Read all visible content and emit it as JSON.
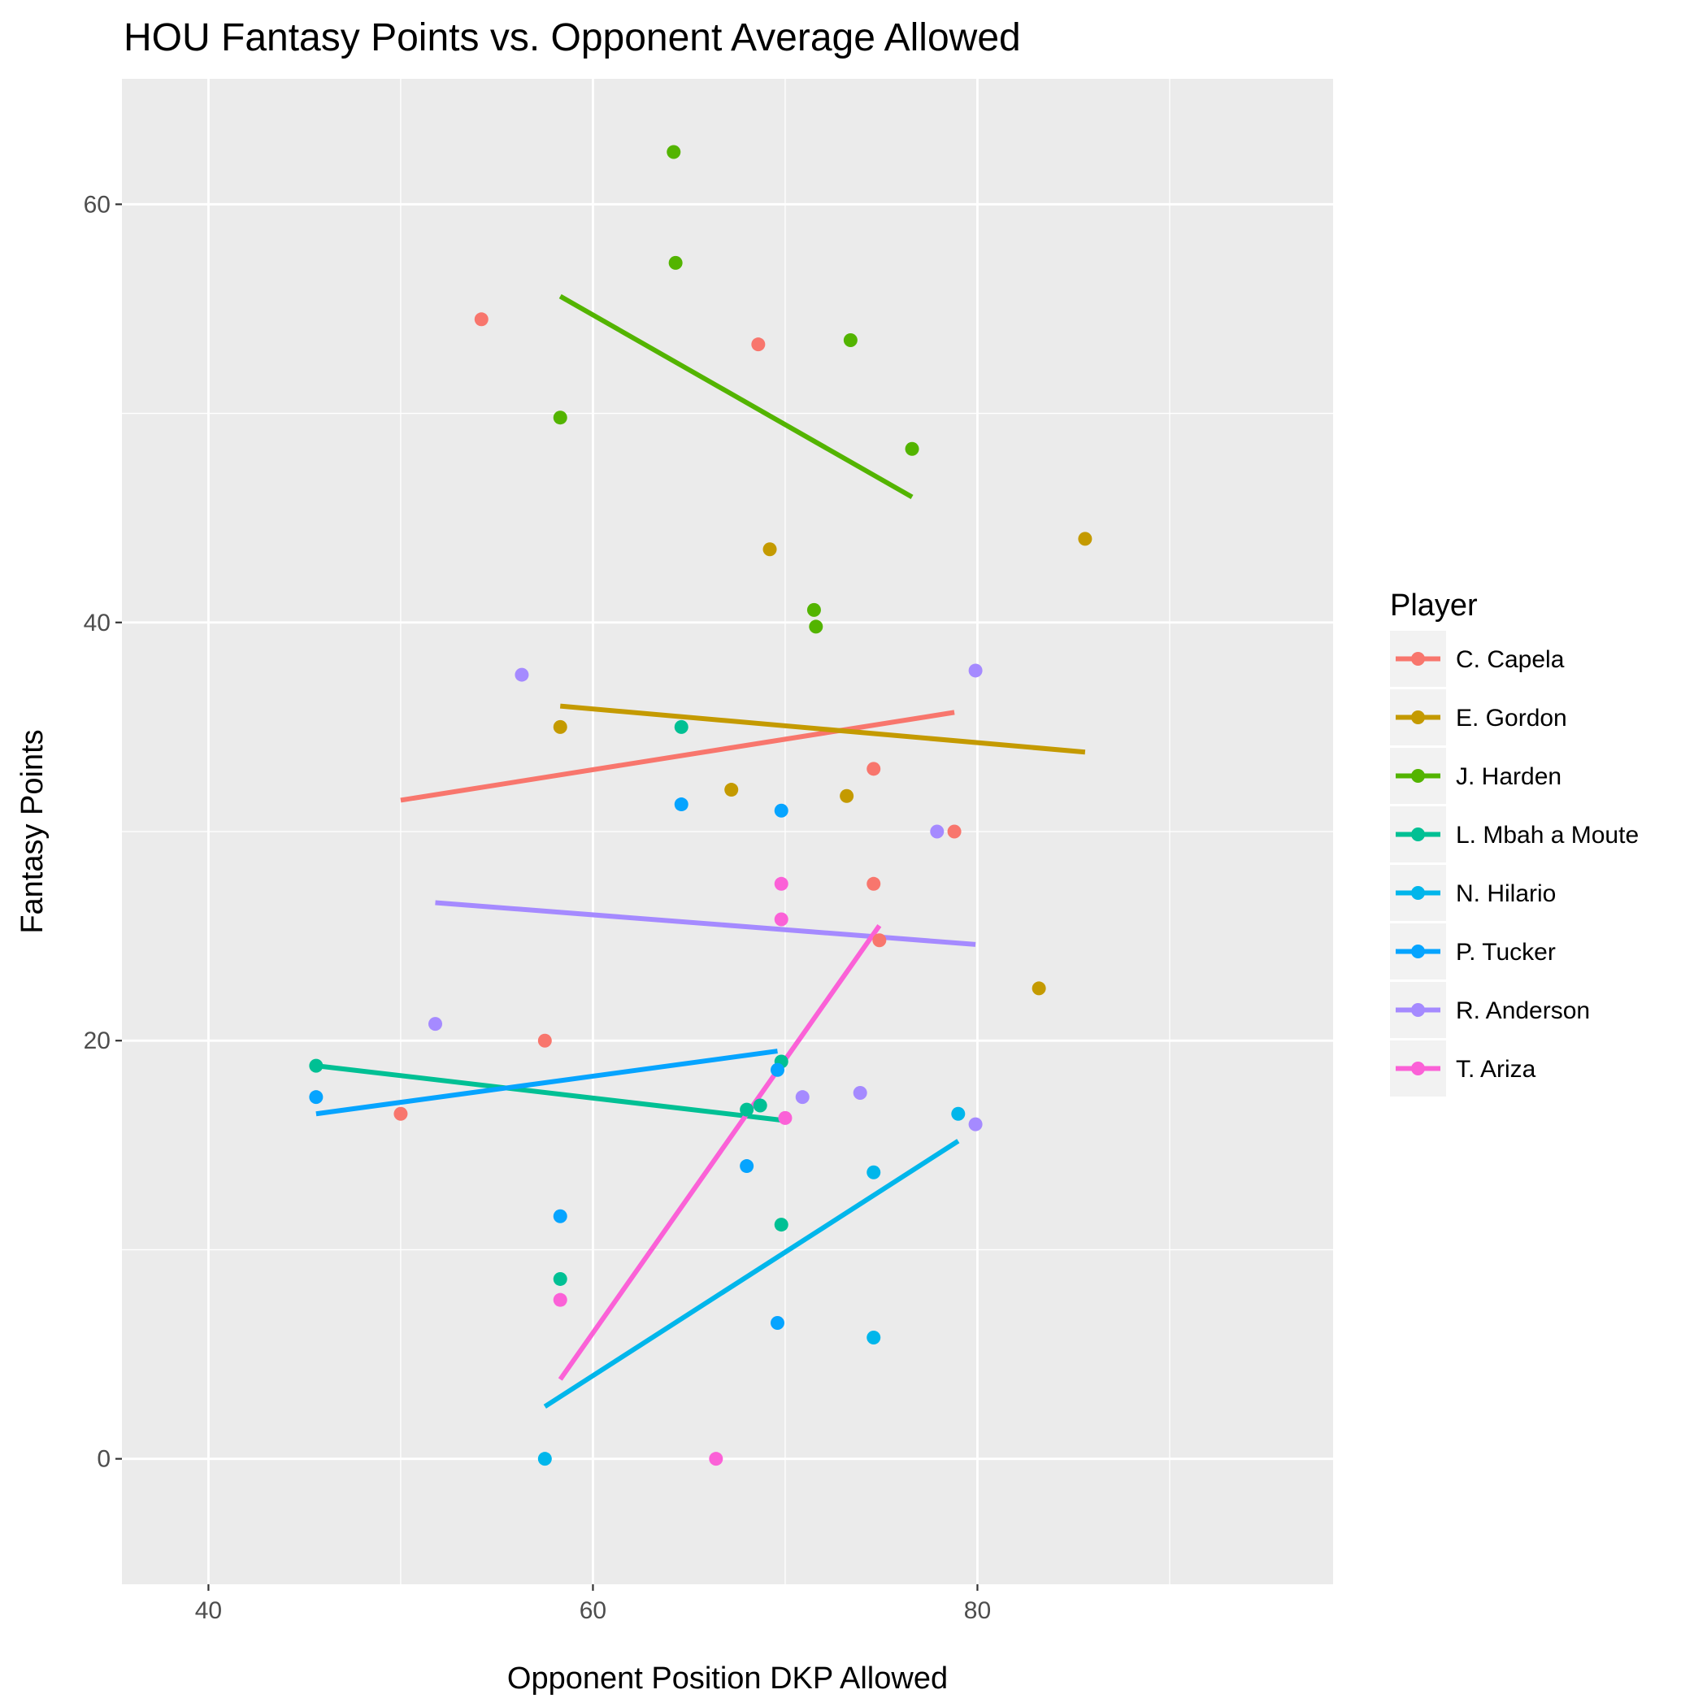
{
  "chart_data": {
    "type": "scatter",
    "title": "HOU Fantasy Points vs. Opponent Average Allowed",
    "xlabel": "Opponent Position DKP Allowed",
    "ylabel": "Fantasy Points",
    "xlim": [
      35.5,
      98.5
    ],
    "ylim": [
      -6,
      66
    ],
    "x_ticks": [
      40,
      60,
      80
    ],
    "y_ticks": [
      0,
      20,
      40,
      60
    ],
    "x_minor": [
      50,
      70,
      90
    ],
    "y_minor": [
      10,
      30,
      50
    ],
    "grid": true,
    "legend_title": "Player",
    "legend_position": "right",
    "series": [
      {
        "name": "C. Capela",
        "color": "#F8766D",
        "points": [
          [
            54.2,
            54.5
          ],
          [
            68.6,
            53.3
          ],
          [
            50.0,
            16.5
          ],
          [
            57.5,
            20.0
          ],
          [
            74.6,
            33.0
          ],
          [
            78.8,
            30.0
          ],
          [
            74.6,
            27.5
          ],
          [
            74.9,
            24.8
          ]
        ],
        "trend": [
          [
            50.0,
            31.5
          ],
          [
            78.8,
            35.7
          ]
        ]
      },
      {
        "name": "E. Gordon",
        "color": "#C49A00",
        "points": [
          [
            58.3,
            35.0
          ],
          [
            69.2,
            43.5
          ],
          [
            67.2,
            32.0
          ],
          [
            73.2,
            31.7
          ],
          [
            85.6,
            44.0
          ],
          [
            83.2,
            22.5
          ]
        ],
        "trend": [
          [
            58.3,
            36.0
          ],
          [
            85.6,
            33.8
          ]
        ]
      },
      {
        "name": "J. Harden",
        "color": "#53B400",
        "points": [
          [
            64.2,
            62.5
          ],
          [
            64.3,
            57.2
          ],
          [
            73.4,
            53.5
          ],
          [
            58.3,
            49.8
          ],
          [
            76.6,
            48.3
          ],
          [
            71.5,
            40.6
          ],
          [
            71.6,
            39.8
          ]
        ],
        "trend": [
          [
            58.3,
            55.6
          ],
          [
            76.6,
            46.0
          ]
        ]
      },
      {
        "name": "L. Mbah a Moute",
        "color": "#00C094",
        "points": [
          [
            45.6,
            18.8
          ],
          [
            64.6,
            35.0
          ],
          [
            69.8,
            19.0
          ],
          [
            68.0,
            16.7
          ],
          [
            68.7,
            16.9
          ],
          [
            69.8,
            11.2
          ],
          [
            58.3,
            8.6
          ]
        ],
        "trend": [
          [
            45.6,
            18.8
          ],
          [
            69.8,
            16.2
          ]
        ]
      },
      {
        "name": "N. Hilario",
        "color": "#00B6EB",
        "points": [
          [
            57.5,
            0.0
          ],
          [
            79.0,
            16.5
          ],
          [
            74.6,
            13.7
          ],
          [
            74.6,
            5.8
          ]
        ],
        "trend": [
          [
            57.5,
            2.5
          ],
          [
            79.0,
            15.2
          ]
        ]
      },
      {
        "name": "P. Tucker",
        "color": "#06A4FF",
        "points": [
          [
            45.6,
            17.3
          ],
          [
            64.6,
            31.3
          ],
          [
            69.8,
            31.0
          ],
          [
            69.6,
            18.6
          ],
          [
            68.0,
            14.0
          ],
          [
            58.3,
            11.6
          ],
          [
            69.6,
            6.5
          ]
        ],
        "trend": [
          [
            45.6,
            16.5
          ],
          [
            69.6,
            19.5
          ]
        ]
      },
      {
        "name": "R. Anderson",
        "color": "#A58AFF",
        "points": [
          [
            56.3,
            37.5
          ],
          [
            79.9,
            37.7
          ],
          [
            77.9,
            30.0
          ],
          [
            51.8,
            20.8
          ],
          [
            70.9,
            17.3
          ],
          [
            73.9,
            17.5
          ],
          [
            79.9,
            16.0
          ]
        ],
        "trend": [
          [
            51.8,
            26.6
          ],
          [
            79.9,
            24.6
          ]
        ]
      },
      {
        "name": "T. Ariza",
        "color": "#FB61D7",
        "points": [
          [
            69.8,
            27.5
          ],
          [
            69.8,
            25.8
          ],
          [
            70.0,
            16.3
          ],
          [
            58.3,
            7.6
          ],
          [
            66.4,
            0.0
          ]
        ],
        "trend": [
          [
            58.3,
            3.8
          ],
          [
            74.9,
            25.5
          ]
        ]
      }
    ]
  }
}
